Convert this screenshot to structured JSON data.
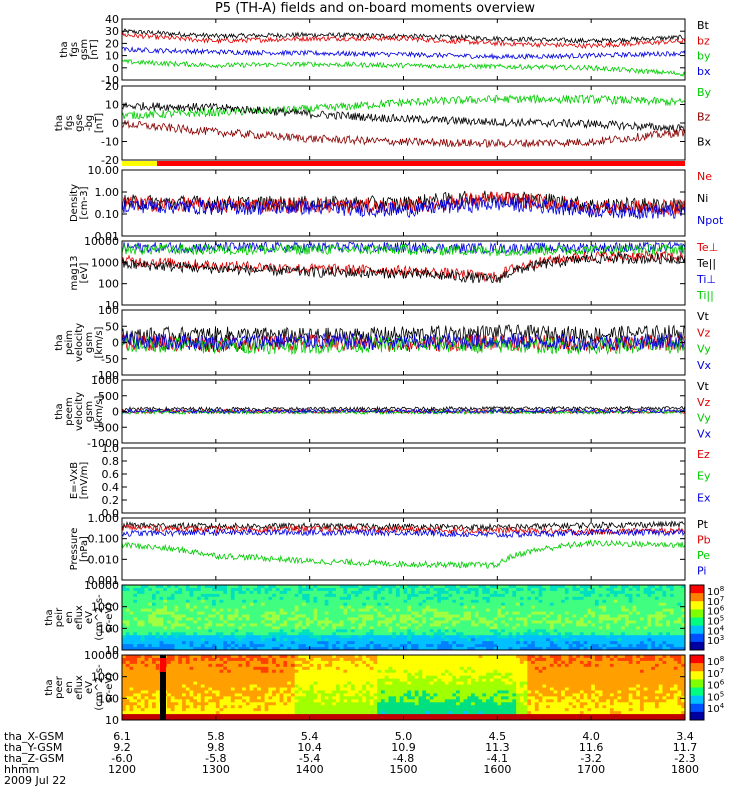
{
  "title": "P5 (TH-A) fields and on-board moments overview",
  "date_label": "2009 Jul 22",
  "colorbar_exponents": {
    "ion": [
      "8",
      "7",
      "6",
      "5",
      "4",
      "3"
    ],
    "electron": [
      "8",
      "7",
      "6",
      "5",
      "4"
    ]
  },
  "ephemeris": {
    "row_labels": [
      "tha_X-GSM",
      "tha_Y-GSM",
      "tha_Z-GSM",
      "hhmm"
    ],
    "columns": [
      [
        "6.1",
        "9.2",
        "-6.0",
        "1200"
      ],
      [
        "5.8",
        "9.8",
        "-5.8",
        "1300"
      ],
      [
        "5.4",
        "10.4",
        "-5.4",
        "1400"
      ],
      [
        "5.0",
        "10.9",
        "-4.8",
        "1500"
      ],
      [
        "4.5",
        "11.3",
        "-4.1",
        "1600"
      ],
      [
        "4.0",
        "11.6",
        "-3.2",
        "1700"
      ],
      [
        "3.4",
        "11.7",
        "-2.3",
        "1800"
      ]
    ]
  },
  "colors": {
    "black": "#000000",
    "red": "#e00000",
    "green": "#00cc00",
    "blue": "#0000e0",
    "darkred": "#8b0000",
    "yellow": "#ffff00"
  },
  "chart_data": [
    {
      "type": "line",
      "ylabel": [
        "tha",
        "fgs",
        "gsm",
        "[nT]"
      ],
      "ylim": [
        -10,
        40
      ],
      "ticks": [
        "40",
        "30",
        "20",
        "10",
        "0",
        "-10"
      ],
      "legend": [
        [
          "Bt",
          "black"
        ],
        [
          "bz",
          "red"
        ],
        [
          "by",
          "green"
        ],
        [
          "bx",
          "blue"
        ]
      ],
      "x": [
        1200,
        1300,
        1400,
        1500,
        1600,
        1700,
        1800
      ],
      "series": [
        {
          "name": "Bt",
          "values": [
            30,
            26,
            27,
            26,
            24,
            22,
            25
          ]
        },
        {
          "name": "bz",
          "values": [
            27,
            22,
            24,
            24,
            20,
            18,
            22
          ]
        },
        {
          "name": "bx",
          "values": [
            15,
            13,
            12,
            11,
            9,
            10,
            12
          ]
        },
        {
          "name": "by",
          "values": [
            5,
            2,
            3,
            2,
            1,
            0,
            -5
          ]
        }
      ]
    },
    {
      "type": "line",
      "ylabel": [
        "tha",
        "fgs",
        "gse",
        "-bg",
        "[nT]"
      ],
      "ylim": [
        -25,
        20
      ],
      "ticks": [
        "20",
        "10",
        "0",
        "-10",
        "-20"
      ],
      "legend": [
        [
          "By",
          "green"
        ],
        [
          "Bz",
          "darkred"
        ],
        [
          "Bx",
          "black"
        ]
      ],
      "x": [
        1200,
        1300,
        1400,
        1500,
        1600,
        1700,
        1800
      ],
      "series": [
        {
          "name": "By",
          "values": [
            2,
            4,
            6,
            10,
            12,
            12,
            10
          ]
        },
        {
          "name": "Bx",
          "values": [
            8,
            7,
            3,
            0,
            -2,
            -3,
            -6
          ]
        },
        {
          "name": "Bz",
          "values": [
            -3,
            -8,
            -12,
            -14,
            -15,
            -14,
            -8
          ]
        }
      ]
    },
    {
      "type": "line",
      "ylabel": [
        "Density",
        "[cm-3]"
      ],
      "scale": "log",
      "ylim": [
        0.01,
        10
      ],
      "ticks": [
        "10.00",
        "1.00",
        "0.10",
        "0.01"
      ],
      "legend": [
        [
          "Ne",
          "red"
        ],
        [
          "Ni",
          "black"
        ],
        [
          "Npot",
          "blue"
        ]
      ],
      "x": [
        1200,
        1300,
        1400,
        1500,
        1600,
        1700,
        1800
      ],
      "series": [
        {
          "name": "Ni",
          "values": [
            0.35,
            0.3,
            0.3,
            0.3,
            0.6,
            0.25,
            0.25
          ]
        },
        {
          "name": "Ne",
          "values": [
            0.3,
            0.25,
            0.25,
            0.2,
            0.5,
            0.2,
            0.2
          ]
        },
        {
          "name": "Npot",
          "values": [
            0.25,
            0.2,
            0.2,
            0.15,
            0.3,
            0.15,
            0.12
          ]
        }
      ]
    },
    {
      "type": "line",
      "ylabel": [
        "mag13",
        "[eV]"
      ],
      "scale": "log",
      "ylim": [
        10,
        10000
      ],
      "ticks": [
        "10000",
        "1000",
        "100",
        "10"
      ],
      "legend": [
        [
          "Te⊥",
          "red"
        ],
        [
          "Te||",
          "black"
        ],
        [
          "Ti⊥",
          "blue"
        ],
        [
          "Ti||",
          "green"
        ]
      ],
      "x": [
        1200,
        1300,
        1400,
        1500,
        1600,
        1700,
        1800
      ],
      "series": [
        {
          "name": "Ti⊥",
          "values": [
            5000,
            5000,
            5000,
            5000,
            4500,
            5000,
            5000
          ]
        },
        {
          "name": "Ti||",
          "values": [
            4000,
            4000,
            4000,
            4000,
            3500,
            4000,
            4000
          ]
        },
        {
          "name": "Te⊥",
          "values": [
            1200,
            700,
            500,
            400,
            200,
            2000,
            1800
          ]
        },
        {
          "name": "Te||",
          "values": [
            800,
            500,
            350,
            300,
            150,
            1500,
            1500
          ]
        }
      ]
    },
    {
      "type": "line",
      "ylabel": [
        "tha",
        "peim",
        "velocity",
        "gsm",
        "[km/s]"
      ],
      "ylim": [
        -100,
        100
      ],
      "ticks": [
        "100",
        "50",
        "0",
        "-50",
        "-100"
      ],
      "legend": [
        [
          "Vt",
          "black"
        ],
        [
          "Vz",
          "red"
        ],
        [
          "Vy",
          "green"
        ],
        [
          "Vx",
          "blue"
        ]
      ],
      "x": [
        1200,
        1300,
        1400,
        1500,
        1600,
        1700,
        1800
      ],
      "series": [
        {
          "name": "Vt",
          "values": [
            20,
            25,
            20,
            25,
            30,
            25,
            30
          ]
        },
        {
          "name": "Vz",
          "values": [
            0,
            -5,
            0,
            -5,
            0,
            -5,
            0
          ]
        },
        {
          "name": "Vy",
          "values": [
            -5,
            -10,
            -10,
            -5,
            -10,
            -10,
            -10
          ]
        },
        {
          "name": "Vx",
          "values": [
            5,
            0,
            5,
            0,
            5,
            0,
            5
          ]
        }
      ]
    },
    {
      "type": "line",
      "ylabel": [
        "tha",
        "peem",
        "velocity",
        "gsm",
        "[km/s]"
      ],
      "ylim": [
        -1000,
        1000
      ],
      "ticks": [
        "1000",
        "500",
        "0",
        "-500",
        "-1000"
      ],
      "legend": [
        [
          "Vt",
          "black"
        ],
        [
          "Vz",
          "red"
        ],
        [
          "Vy",
          "green"
        ],
        [
          "Vx",
          "blue"
        ]
      ],
      "x": [
        1200,
        1300,
        1400,
        1500,
        1600,
        1700,
        1800
      ],
      "series": [
        {
          "name": "Vt",
          "values": [
            80,
            80,
            80,
            80,
            100,
            90,
            120
          ]
        },
        {
          "name": "Vz",
          "values": [
            0,
            0,
            0,
            0,
            0,
            0,
            0
          ]
        },
        {
          "name": "Vy",
          "values": [
            -20,
            -20,
            -20,
            -20,
            -20,
            -20,
            -20
          ]
        },
        {
          "name": "Vx",
          "values": [
            10,
            10,
            10,
            10,
            10,
            10,
            10
          ]
        }
      ]
    },
    {
      "type": "line",
      "ylabel": [
        "E=-VxB",
        "[mV/m]"
      ],
      "ylim": [
        0,
        1
      ],
      "ticks": [
        "1.0",
        "0.8",
        "0.6",
        "0.4",
        "0.2",
        "0.0"
      ],
      "legend": [
        [
          "Ez",
          "red"
        ],
        [
          "Ey",
          "green"
        ],
        [
          "Ex",
          "blue"
        ]
      ],
      "series": []
    },
    {
      "type": "line",
      "ylabel": [
        "Pressure",
        "[nPa]"
      ],
      "scale": "log",
      "ylim": [
        0.001,
        1
      ],
      "ticks": [
        "1.000",
        "0.100",
        "0.010",
        "0.001"
      ],
      "legend": [
        [
          "Pt",
          "black"
        ],
        [
          "Pb",
          "red"
        ],
        [
          "Pe",
          "green"
        ],
        [
          "Pi",
          "blue"
        ]
      ],
      "x": [
        1200,
        1300,
        1400,
        1500,
        1600,
        1700,
        1800
      ],
      "series": [
        {
          "name": "Pt",
          "values": [
            0.45,
            0.4,
            0.4,
            0.38,
            0.35,
            0.45,
            0.5
          ]
        },
        {
          "name": "Pb",
          "values": [
            0.35,
            0.28,
            0.3,
            0.27,
            0.25,
            0.22,
            0.25
          ]
        },
        {
          "name": "Pi",
          "values": [
            0.18,
            0.2,
            0.2,
            0.2,
            0.15,
            0.2,
            0.2
          ]
        },
        {
          "name": "Pe",
          "values": [
            0.05,
            0.015,
            0.008,
            0.006,
            0.005,
            0.06,
            0.05
          ]
        }
      ]
    },
    {
      "type": "heatmap",
      "ylabel": [
        "tha",
        "peir",
        "en",
        "eflux",
        "eV",
        "(cm^2-s-",
        "sr-eV)"
      ],
      "scale": "log",
      "ylim": [
        10,
        30000
      ],
      "ticks": [
        "10000",
        "1000",
        "100",
        "10"
      ]
    },
    {
      "type": "heatmap",
      "ylabel": [
        "tha",
        "peer",
        "en",
        "eflux",
        "eV",
        "(cm^2-s-",
        "sr-eV)"
      ],
      "scale": "log",
      "ylim": [
        10,
        30000
      ],
      "ticks": [
        "10000",
        "1000",
        "100",
        "10"
      ]
    }
  ]
}
